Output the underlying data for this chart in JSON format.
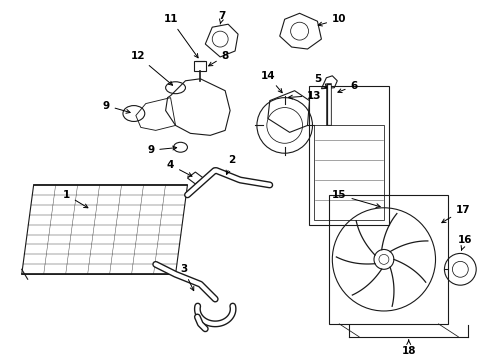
{
  "background_color": "#ffffff",
  "line_color": "#1a1a1a",
  "fig_width": 4.9,
  "fig_height": 3.6,
  "dpi": 100,
  "font_size": 7.5,
  "lw": 0.8
}
